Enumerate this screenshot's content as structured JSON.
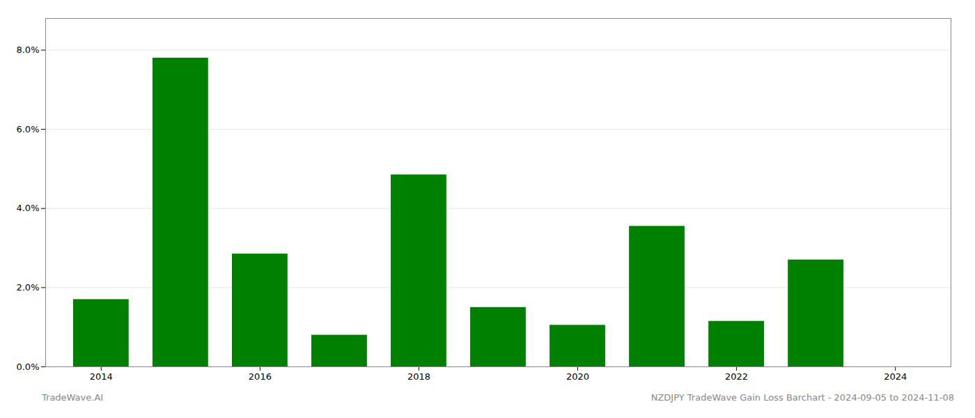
{
  "chart_data": {
    "type": "bar",
    "x": [
      2014,
      2015,
      2016,
      2017,
      2018,
      2019,
      2020,
      2021,
      2022,
      2023,
      2024
    ],
    "values": [
      0.017,
      0.078,
      0.0285,
      0.008,
      0.0485,
      0.015,
      0.0105,
      0.0355,
      0.0115,
      0.027,
      0.0
    ],
    "color": "#008000",
    "xlim": [
      2013.3,
      2024.7
    ],
    "xticks": [
      2014,
      2016,
      2018,
      2020,
      2022,
      2024
    ],
    "ylim": [
      0,
      0.088
    ],
    "yticks": [
      {
        "value": 0.0,
        "label": "0.0%"
      },
      {
        "value": 0.02,
        "label": "2.0%"
      },
      {
        "value": 0.04,
        "label": "4.0%"
      },
      {
        "value": 0.06,
        "label": "6.0%"
      },
      {
        "value": 0.08,
        "label": "8.0%"
      }
    ],
    "grid": true,
    "annotations": [
      "TradeWave.AI",
      "NZDJPY TradeWave Gain Loss Barchart - 2024-09-05 to 2024-11-08"
    ]
  }
}
